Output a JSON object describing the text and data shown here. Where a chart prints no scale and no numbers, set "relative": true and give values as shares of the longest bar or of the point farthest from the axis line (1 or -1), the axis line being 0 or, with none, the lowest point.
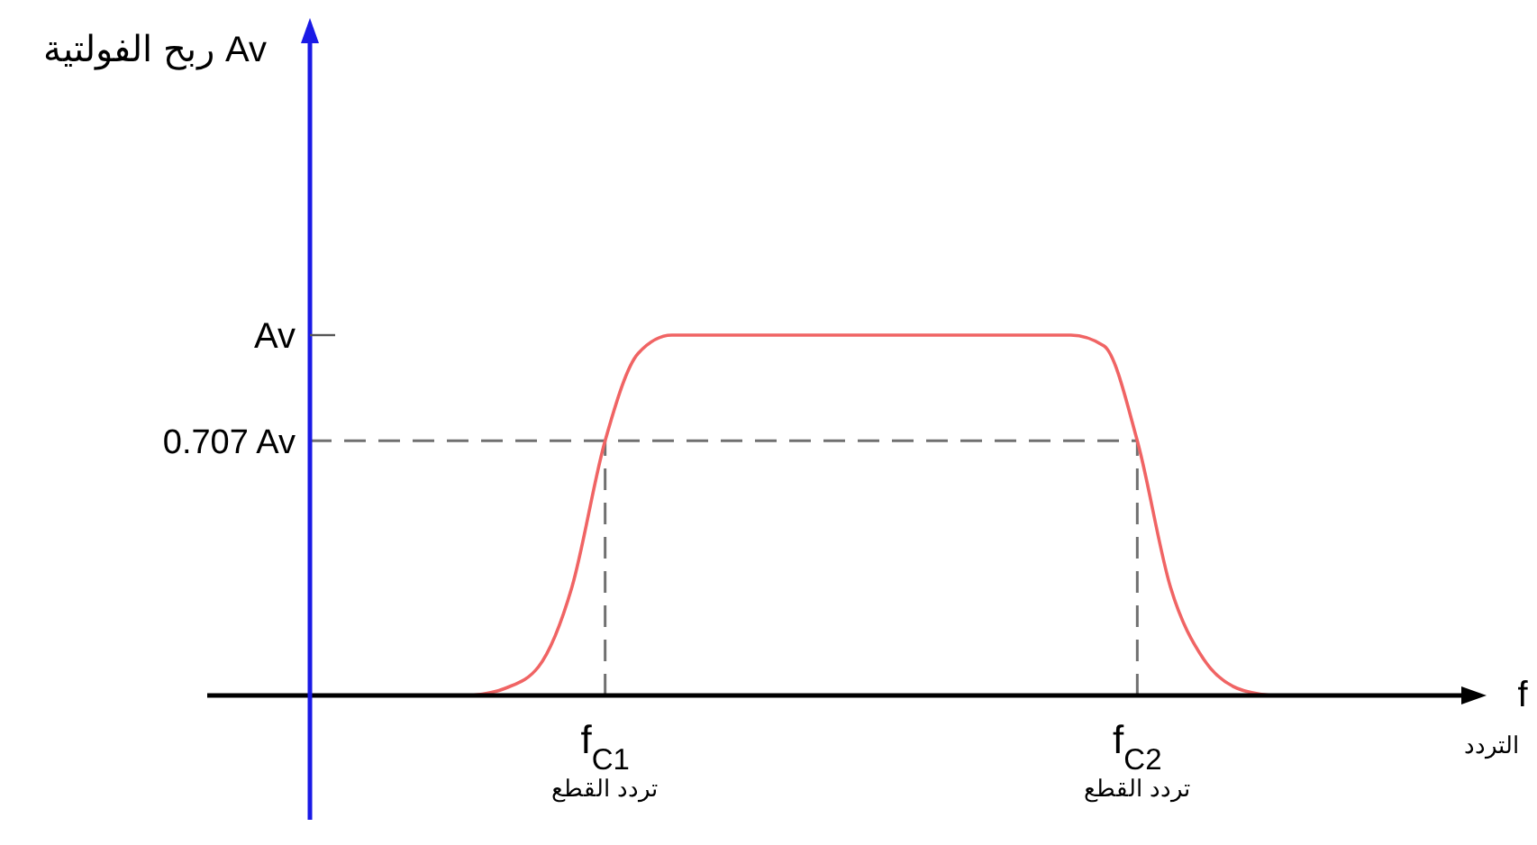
{
  "chart_data": {
    "type": "line",
    "relative": true,
    "annotations": [
      "ربح الفولتية Av",
      "Av",
      "f",
      "التردد"
    ],
    "categories": [
      null,
      null,
      null,
      null,
      "f$_{C1}$\nتردد القطع",
      null,
      null,
      null,
      null,
      null,
      null,
      null,
      null,
      null,
      null,
      null,
      null,
      null,
      null,
      null,
      "f$_{C2}$\nتردد القطع",
      null,
      null,
      null,
      null
    ],
    "series": [
      {
        "color": "#f06464",
        "values": [
          0,
          0.02,
          0.08,
          0.3,
          0.707,
          0.95,
          1,
          1,
          1,
          1,
          1,
          1,
          1,
          1,
          1,
          1,
          1,
          1,
          1,
          0.97,
          0.707,
          0.3,
          0.1,
          0.02,
          0
        ]
      }
    ],
    "ref_lines": [
      {
        "axis": "y",
        "value": 0.707,
        "label": "0.707 Av",
        "line_style": "dashed",
        "color": "#707070"
      },
      {
        "axis": "x",
        "value": "f$_{C1}$\nتردد القطع",
        "line_style": "dashed",
        "color": "#707070"
      },
      {
        "axis": "x",
        "value": "f$_{C2}$\nتردد القطع",
        "line_style": "dashed",
        "color": "#707070"
      }
    ],
    "line_style": "solid"
  }
}
